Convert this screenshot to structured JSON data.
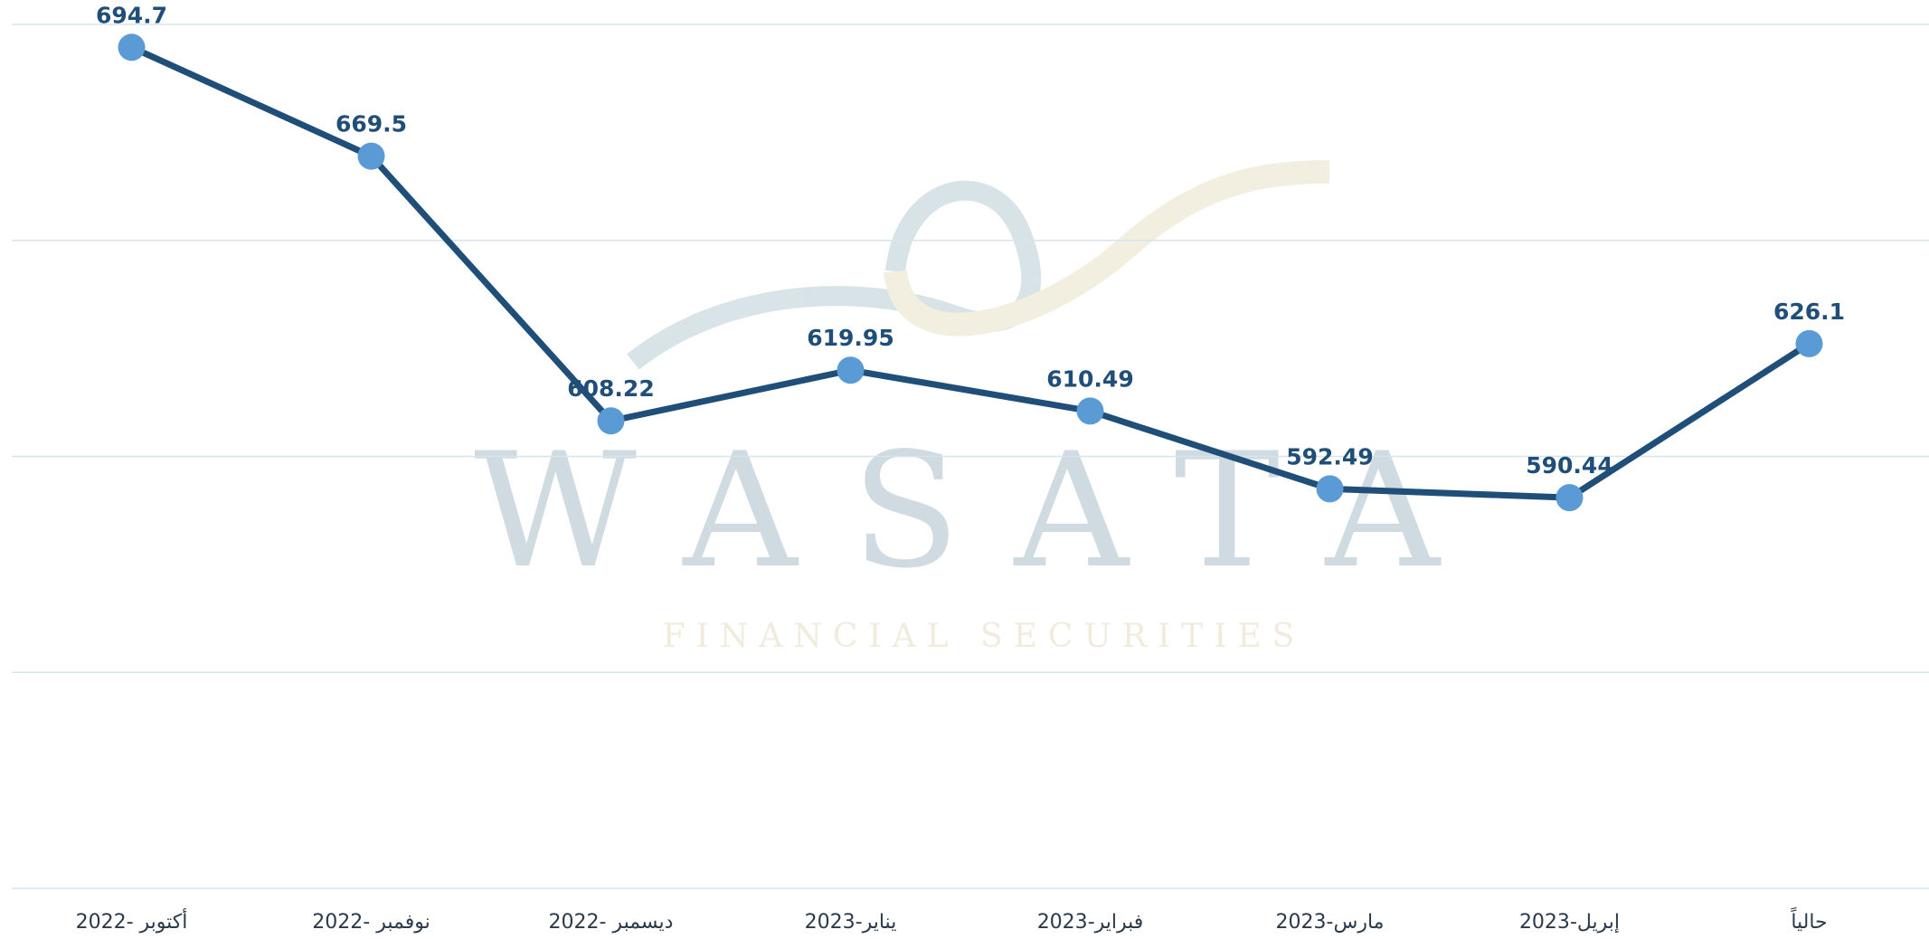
{
  "chart_data": {
    "type": "line",
    "categories": [
      "أكتوبر -2022",
      "نوفمبر -2022",
      "ديسمبر -2022",
      "يناير-2023",
      "فبراير-2023",
      "مارس-2023",
      "إبريل-2023",
      "حالياً"
    ],
    "series": [
      {
        "name": "",
        "color": "#1f4e79",
        "marker_color": "#5b9bd5",
        "values": [
          694.7,
          669.5,
          608.22,
          619.95,
          610.49,
          592.49,
          590.44,
          626.1
        ]
      }
    ],
    "ylim": [
      500,
      700
    ],
    "yticks": [
      500,
      550,
      600,
      650,
      700
    ],
    "grid": true,
    "watermark": {
      "title": "WASATA",
      "subtitle": "FINANCIAL SECURITIES"
    }
  }
}
